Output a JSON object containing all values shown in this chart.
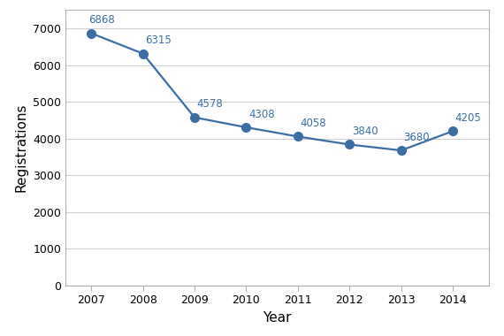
{
  "years": [
    2007,
    2008,
    2009,
    2010,
    2011,
    2012,
    2013,
    2014
  ],
  "values": [
    6868,
    6315,
    4578,
    4308,
    4058,
    3840,
    3680,
    4205
  ],
  "line_color": "#3A6EA5",
  "marker_color": "#3A6EA5",
  "xlabel": "Year",
  "ylabel": "Registrations",
  "ylim": [
    0,
    7500
  ],
  "yticks": [
    0,
    1000,
    2000,
    3000,
    4000,
    5000,
    6000,
    7000
  ],
  "background_color": "#ffffff",
  "plot_bg_color": "#ffffff",
  "grid_color": "#d0d0d0",
  "spine_color": "#b0b0b0",
  "label_fontsize": 8.5,
  "axis_label_fontsize": 11,
  "tick_fontsize": 9,
  "marker_size": 7,
  "line_width": 1.6,
  "annotation_color": "#3A6EA5"
}
